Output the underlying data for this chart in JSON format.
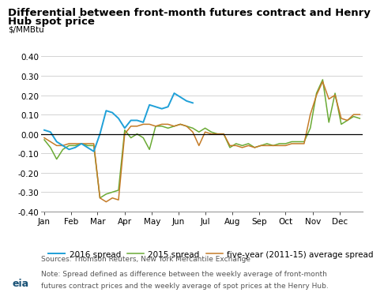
{
  "title_line1": "Differential between front-month futures contract and Henry",
  "title_line2": "Hub spot price",
  "ylabel": "$/MMBtu",
  "ylim": [
    -0.4,
    0.4
  ],
  "yticks": [
    -0.4,
    -0.3,
    -0.2,
    -0.1,
    0.0,
    0.1,
    0.2,
    0.3,
    0.4
  ],
  "months": [
    "Jan",
    "Feb",
    "Mar",
    "Apr",
    "May",
    "Jun",
    "Jul",
    "Aug",
    "Sep",
    "Oct",
    "Nov",
    "Dec"
  ],
  "month_positions": [
    0,
    4.3,
    8.6,
    13,
    17.4,
    21.7,
    26,
    30.4,
    34.7,
    39,
    43.4,
    47.8
  ],
  "line_2016_color": "#1fa0d8",
  "line_2015_color": "#6aaa35",
  "line_5yr_color": "#c47b27",
  "spread_2016_x": [
    0,
    1,
    2,
    3,
    4,
    5,
    6,
    7,
    8,
    9,
    10,
    11,
    12,
    13,
    14,
    15,
    16,
    17,
    18,
    19,
    20,
    21,
    22,
    23,
    24
  ],
  "spread_2016_y": [
    0.02,
    0.01,
    -0.04,
    -0.06,
    -0.08,
    -0.07,
    -0.05,
    -0.07,
    -0.09,
    0.0,
    0.12,
    0.11,
    0.08,
    0.03,
    0.07,
    0.07,
    0.06,
    0.15,
    0.14,
    0.13,
    0.14,
    0.21,
    0.19,
    0.17,
    0.16
  ],
  "spread_2015_x": [
    0,
    1,
    2,
    3,
    4,
    5,
    6,
    7,
    8,
    9,
    10,
    11,
    12,
    13,
    14,
    15,
    16,
    17,
    18,
    19,
    20,
    21,
    22,
    23,
    24,
    25,
    26,
    27,
    28,
    29,
    30,
    31,
    32,
    33,
    34,
    35,
    36,
    37,
    38,
    39,
    40,
    41,
    42,
    43,
    44,
    45,
    46,
    47,
    48,
    49,
    50,
    51
  ],
  "spread_2015_y": [
    -0.03,
    -0.07,
    -0.13,
    -0.08,
    -0.06,
    -0.06,
    -0.05,
    -0.06,
    -0.06,
    -0.33,
    -0.31,
    -0.3,
    -0.29,
    0.02,
    -0.02,
    0.0,
    -0.02,
    -0.08,
    0.04,
    0.04,
    0.03,
    0.04,
    0.05,
    0.04,
    0.03,
    0.01,
    0.03,
    0.01,
    0.0,
    0.0,
    -0.07,
    -0.05,
    -0.06,
    -0.05,
    -0.07,
    -0.06,
    -0.05,
    -0.06,
    -0.05,
    -0.05,
    -0.04,
    -0.04,
    -0.04,
    0.03,
    0.21,
    0.28,
    0.06,
    0.21,
    0.05,
    0.07,
    0.09,
    0.08
  ],
  "spread_5yr_x": [
    0,
    1,
    2,
    3,
    4,
    5,
    6,
    7,
    8,
    9,
    10,
    11,
    12,
    13,
    14,
    15,
    16,
    17,
    18,
    19,
    20,
    21,
    22,
    23,
    24,
    25,
    26,
    27,
    28,
    29,
    30,
    31,
    32,
    33,
    34,
    35,
    36,
    37,
    38,
    39,
    40,
    41,
    42,
    43,
    44,
    45,
    46,
    47,
    48,
    49,
    50,
    51
  ],
  "spread_5yr_y": [
    -0.02,
    -0.04,
    -0.06,
    -0.06,
    -0.05,
    -0.05,
    -0.05,
    -0.05,
    -0.05,
    -0.33,
    -0.35,
    -0.33,
    -0.34,
    0.0,
    0.04,
    0.04,
    0.05,
    0.05,
    0.04,
    0.05,
    0.05,
    0.04,
    0.05,
    0.04,
    0.01,
    -0.06,
    0.01,
    0.0,
    0.0,
    0.0,
    -0.06,
    -0.06,
    -0.07,
    -0.06,
    -0.07,
    -0.06,
    -0.06,
    -0.06,
    -0.06,
    -0.06,
    -0.05,
    -0.05,
    -0.05,
    0.1,
    0.2,
    0.27,
    0.18,
    0.2,
    0.08,
    0.07,
    0.1,
    0.1
  ],
  "sources_text": "Sources: Thomson Reuters, New York Mercantile Exchange",
  "note_line1": "Note: Spread defined as difference between the weekly average of front-month",
  "note_line2": "futures contract prices and the weekly average of spot prices at the Henry Hub.",
  "bg_color": "#ffffff",
  "grid_color": "#cccccc",
  "legend_2016": "2016 spread",
  "legend_2015": "2015 spread",
  "legend_5yr": "five-year (2011-15) average spread"
}
